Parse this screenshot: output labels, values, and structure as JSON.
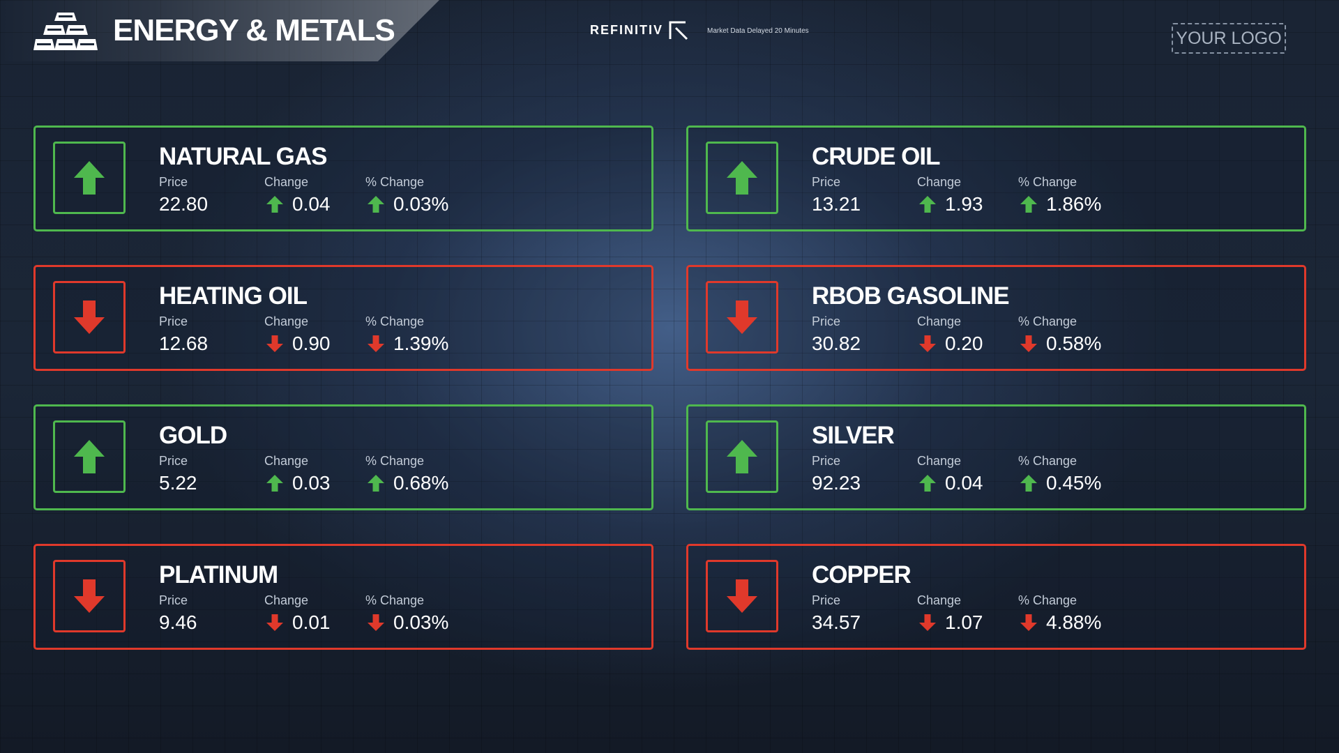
{
  "header": {
    "title": "ENERGY & METALS",
    "provider": "REFINITIV",
    "delay_note": "Market Data Delayed 20 Minutes",
    "logo_placeholder": "YOUR LOGO"
  },
  "labels": {
    "price": "Price",
    "change": "Change",
    "pct_change": "% Change"
  },
  "colors": {
    "up": "#4fb84e",
    "down": "#e0392b"
  },
  "icons": {
    "up": "arrow-up-icon",
    "down": "arrow-down-icon",
    "header": "gold-bars-icon"
  },
  "commodities": [
    {
      "name": "NATURAL GAS",
      "direction": "up",
      "price": "22.80",
      "change": "0.04",
      "pct_change": "0.03%"
    },
    {
      "name": "CRUDE OIL",
      "direction": "up",
      "price": "13.21",
      "change": "1.93",
      "pct_change": "1.86%"
    },
    {
      "name": "HEATING OIL",
      "direction": "down",
      "price": "12.68",
      "change": "0.90",
      "pct_change": "1.39%"
    },
    {
      "name": "RBOB GASOLINE",
      "direction": "down",
      "price": "30.82",
      "change": "0.20",
      "pct_change": "0.58%"
    },
    {
      "name": "GOLD",
      "direction": "up",
      "price": "5.22",
      "change": "0.03",
      "pct_change": "0.68%"
    },
    {
      "name": "SILVER",
      "direction": "up",
      "price": "92.23",
      "change": "0.04",
      "pct_change": "0.45%"
    },
    {
      "name": "PLATINUM",
      "direction": "down",
      "price": "9.46",
      "change": "0.01",
      "pct_change": "0.03%"
    },
    {
      "name": "COPPER",
      "direction": "down",
      "price": "34.57",
      "change": "1.07",
      "pct_change": "4.88%"
    }
  ]
}
